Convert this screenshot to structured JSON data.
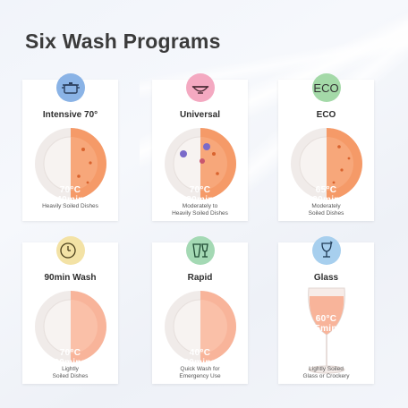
{
  "title": "Six Wash Programs",
  "colors": {
    "accent": "#f08b5c",
    "plate": "#f2ebe8"
  },
  "programs": [
    {
      "name": "Intensive 70°",
      "icon": "pot-icon",
      "icon_color": "#8ab3e6",
      "temp": "70°C",
      "time": "140mins",
      "desc1": "Heavily Soiled Dishes",
      "desc2": "",
      "fill": 0.5
    },
    {
      "name": "Universal",
      "icon": "bowl-icon",
      "icon_color": "#f4a9c1",
      "temp": "70°C",
      "time": "120mins",
      "desc1": "Moderately to",
      "desc2": "Heavily Soiled Dishes",
      "fill": 0.45
    },
    {
      "name": "ECO",
      "icon": "eco-icon",
      "icon_label": "ECO",
      "icon_color": "#a4d9a8",
      "temp": "65°C",
      "time": "230mins",
      "desc1": "Moderately",
      "desc2": "Soiled Dishes",
      "fill": 0.5
    },
    {
      "name": "90min Wash",
      "icon": "clock-icon",
      "icon_label": "90'",
      "icon_color": "#f3e2a5",
      "temp": "70°C",
      "time": "90mins",
      "desc1": "Lightly",
      "desc2": "Soiled Dishes",
      "fill": 0.5
    },
    {
      "name": "Rapid",
      "icon": "cup-glass-icon",
      "icon_color": "#a4d9b4",
      "temp": "40°C",
      "time": "30mins",
      "desc1": "Quick Wash for",
      "desc2": "Emergency Use",
      "fill": 0.5
    },
    {
      "name": "Glass",
      "icon": "wine-glass-icon",
      "icon_color": "#a7cfee",
      "temp": "60°C",
      "time": "75mins",
      "desc1": "Lightly Soiled",
      "desc2": "Glass or Crockery",
      "fill": 0.5
    }
  ]
}
